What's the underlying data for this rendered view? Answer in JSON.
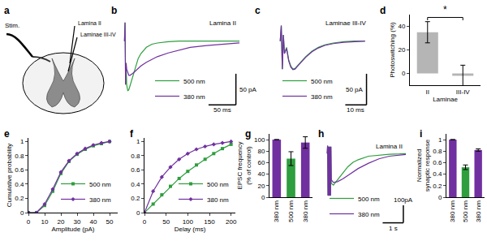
{
  "chart_data": [
    {
      "type": "diagram",
      "panel": "a",
      "labels": {
        "stimulus": "Stim.",
        "electrode_1": "Lamina II",
        "electrode_2": "Laminae III-IV"
      }
    },
    {
      "type": "line",
      "panel": "b",
      "x": [
        0,
        1,
        2,
        3,
        4,
        6,
        8,
        10,
        12,
        15,
        20,
        25,
        30,
        40,
        50,
        60,
        80,
        100,
        120,
        150,
        180,
        210
      ],
      "series": [
        {
          "name": "500 nm",
          "color": "#2e9e3e",
          "values": [
            0,
            30,
            -70,
            -40,
            -70,
            -80,
            -78,
            -72,
            -65,
            -55,
            -40,
            -28,
            -20,
            -10,
            -5,
            -3,
            -1,
            0,
            0,
            0,
            0,
            0
          ]
        },
        {
          "name": "380 nm",
          "color": "#7030a0",
          "values": [
            0,
            30,
            -70,
            -35,
            -45,
            -52,
            -55,
            -55,
            -54,
            -52,
            -48,
            -44,
            -40,
            -34,
            -29,
            -25,
            -19,
            -14,
            -10,
            -7,
            -5,
            -3
          ]
        }
      ],
      "xlim": [
        -5,
        210
      ],
      "ylim": [
        -110,
        40
      ],
      "tick_labels": false,
      "legend": "lower center",
      "annotations": [
        {
          "text": "Lamina II"
        }
      ],
      "scale_bar": {
        "x": 50,
        "x_label": "50 ms",
        "y": 50,
        "y_label": "50 pA"
      }
    },
    {
      "type": "line",
      "panel": "c",
      "x": [
        0,
        0.5,
        1,
        1.5,
        2,
        3,
        4,
        5,
        6,
        7,
        8,
        10,
        12,
        15,
        18,
        21,
        25,
        30,
        35,
        40
      ],
      "series": [
        {
          "name": "500 nm",
          "color": "#2e9e3e",
          "values": [
            0,
            25,
            -45,
            10,
            -20,
            -10,
            -30,
            -40,
            -45,
            -44,
            -40,
            -32,
            -25,
            -16,
            -10,
            -6,
            -3,
            -1,
            0,
            0
          ]
        },
        {
          "name": "380 nm",
          "color": "#7030a0",
          "values": [
            0,
            25,
            -45,
            10,
            -20,
            -12,
            -32,
            -42,
            -46,
            -45,
            -41,
            -33,
            -26,
            -17,
            -11,
            -7,
            -4,
            -2,
            -1,
            0
          ]
        }
      ],
      "xlim": [
        -2,
        42
      ],
      "ylim": [
        -110,
        40
      ],
      "tick_labels": false,
      "legend": "lower left",
      "annotations": [
        {
          "text": "Laminae III-IV"
        }
      ],
      "scale_bar": {
        "x": 10,
        "x_label": "10 ms",
        "y": 50,
        "y_label": "50 pA"
      }
    },
    {
      "type": "bar",
      "panel": "d",
      "categories": [
        "II",
        "III-IV"
      ],
      "values": [
        35,
        -2
      ],
      "errors": [
        9,
        9
      ],
      "color": "#b5b5b5",
      "ylim": [
        -10,
        50
      ],
      "yticks": [
        0,
        20,
        40
      ],
      "xlabel": "Laminae",
      "ylabel": "Photoswitching (%)",
      "annotations": [
        {
          "text": "*",
          "between": [
            0,
            1
          ]
        }
      ]
    },
    {
      "type": "line",
      "panel": "e",
      "x": [
        0,
        5,
        10,
        15,
        20,
        25,
        30,
        35,
        40,
        45,
        50
      ],
      "series": [
        {
          "name": "500 nm",
          "color": "#2e9e3e",
          "marker": "square",
          "values": [
            0,
            0,
            0.1,
            0.3,
            0.55,
            0.72,
            0.82,
            0.89,
            0.94,
            0.97,
            1
          ]
        },
        {
          "name": "380 nm",
          "color": "#7030a0",
          "marker": "diamond",
          "values": [
            0,
            0,
            0.12,
            0.33,
            0.57,
            0.73,
            0.83,
            0.9,
            0.95,
            0.98,
            1
          ]
        }
      ],
      "xlim": [
        0,
        55
      ],
      "ylim": [
        0,
        1.05
      ],
      "xticks": [
        0,
        10,
        20,
        30,
        40,
        50
      ],
      "yticks": [
        0,
        0.2,
        0.4,
        0.6,
        0.8,
        1
      ],
      "xlabel": "Amplitude (pA)",
      "ylabel": "Cumulative probability",
      "legend": "lower right"
    },
    {
      "type": "line",
      "panel": "f",
      "x": [
        0,
        20,
        40,
        60,
        80,
        100,
        120,
        140,
        160,
        180,
        200
      ],
      "series": [
        {
          "name": "500 nm",
          "color": "#2e9e3e",
          "marker": "square",
          "values": [
            0,
            0.12,
            0.25,
            0.37,
            0.48,
            0.58,
            0.67,
            0.75,
            0.83,
            0.9,
            0.96
          ]
        },
        {
          "name": "380 nm",
          "color": "#7030a0",
          "marker": "diamond",
          "values": [
            0,
            0.3,
            0.5,
            0.64,
            0.75,
            0.83,
            0.89,
            0.93,
            0.96,
            0.98,
            1
          ]
        }
      ],
      "xlim": [
        0,
        210
      ],
      "ylim": [
        0,
        1.05
      ],
      "xticks": [
        0,
        50,
        100,
        150,
        200
      ],
      "yticks": [
        0,
        0.2,
        0.4,
        0.6,
        0.8,
        1
      ],
      "xlabel": "Delay (ms)",
      "legend": "lower right"
    },
    {
      "type": "bar",
      "panel": "g",
      "categories": [
        "380 nm",
        "500 nm",
        "380 nm"
      ],
      "values": [
        100,
        67,
        95
      ],
      "errors": [
        null,
        12,
        10
      ],
      "colors": [
        "#7030a0",
        "#2e9e3e",
        "#7030a0"
      ],
      "ylim": [
        0,
        110
      ],
      "yticks": [
        0,
        20,
        40,
        60,
        80,
        100
      ],
      "ylabel": "EPSC frequency\n(% of control)"
    },
    {
      "type": "line",
      "panel": "h",
      "x": [
        0,
        0.02,
        0.04,
        0.06,
        0.08,
        0.1,
        0.12,
        0.14,
        0.16,
        0.18,
        0.2,
        0.3,
        0.5,
        0.75,
        1,
        1.25,
        1.5,
        2,
        2.5,
        3,
        3.5,
        3.8
      ],
      "series": [
        {
          "name": "500 nm",
          "color": "#2e9e3e",
          "values": [
            0,
            45,
            -240,
            40,
            -240,
            40,
            -240,
            40,
            -240,
            40,
            -170,
            -180,
            -150,
            -110,
            -75,
            -50,
            -35,
            -15,
            -8,
            -4,
            -2,
            0
          ]
        },
        {
          "name": "380 nm",
          "color": "#7030a0",
          "values": [
            0,
            45,
            -240,
            40,
            -240,
            40,
            -240,
            40,
            -240,
            40,
            -150,
            -165,
            -160,
            -145,
            -125,
            -105,
            -85,
            -55,
            -30,
            -15,
            -7,
            -5
          ]
        }
      ],
      "xlim": [
        -0.2,
        3.8
      ],
      "ylim": [
        -420,
        80
      ],
      "tick_labels": false,
      "legend": "lower left",
      "annotations": [
        {
          "text": "Lamina II"
        }
      ],
      "scale_bar": {
        "x": 1,
        "x_label": "1 s",
        "y": 100,
        "y_label": "100pA"
      }
    },
    {
      "type": "bar",
      "panel": "i",
      "categories": [
        "380 nm",
        "500 nm",
        "380 nm"
      ],
      "values": [
        1,
        0.52,
        0.82
      ],
      "errors": [
        null,
        0.04,
        0.02
      ],
      "colors": [
        "#7030a0",
        "#2e9e3e",
        "#7030a0"
      ],
      "ylim": [
        0,
        1.1
      ],
      "yticks": [
        0,
        0.2,
        0.4,
        0.6,
        0.8,
        1
      ],
      "ylabel": "Normalized\nsynaptic response"
    }
  ]
}
